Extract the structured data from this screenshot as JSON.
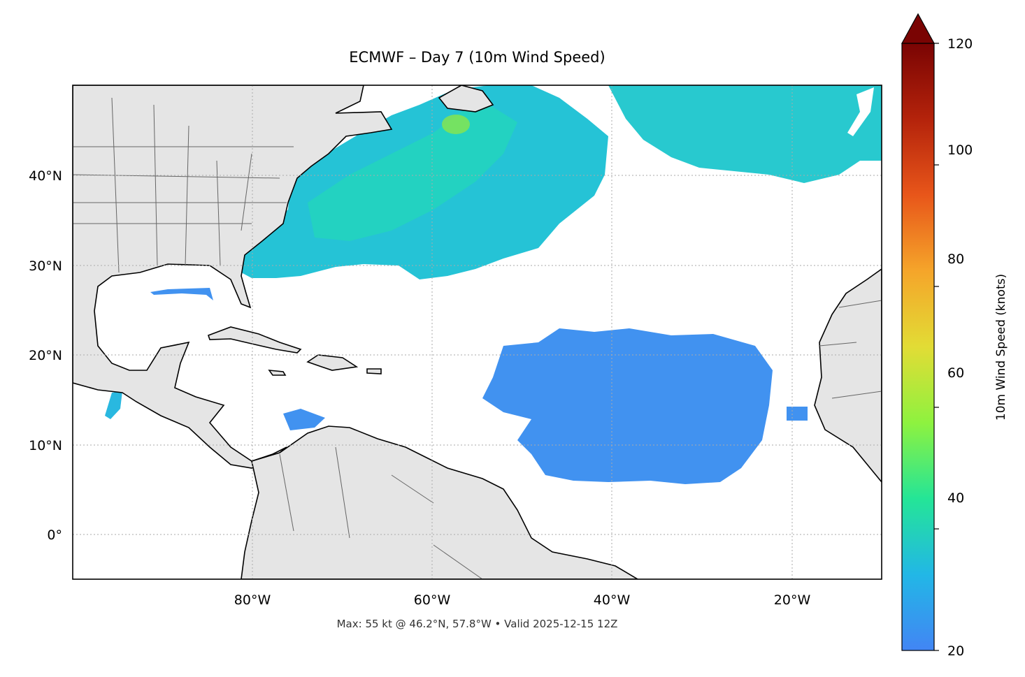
{
  "title": "ECMWF – Day 7 (10m Wind Speed)",
  "footer": "Max: 55 kt @ 46.2°N, 57.8°W • Valid 2025-12-15 12Z",
  "colorbar": {
    "label": "10m Wind Speed (knots)",
    "ticks": [
      "20",
      "40",
      "60",
      "80",
      "100",
      "120"
    ],
    "min": 20,
    "max": 120,
    "extend": "max",
    "colors": [
      "#4285f4",
      "#22b7e6",
      "#24e597",
      "#8ef23f",
      "#e2dc35",
      "#f5a52a",
      "#e8561a",
      "#b4230b",
      "#7a0403"
    ]
  },
  "map": {
    "lon_range": [
      -100,
      -10
    ],
    "lat_range": [
      -5,
      50
    ],
    "lon_ticks": [
      "80°W",
      "60°W",
      "40°W",
      "20°W"
    ],
    "lat_ticks": [
      "40°N",
      "30°N",
      "20°N",
      "10°N",
      "0°"
    ],
    "land_color": "#e5e5e5",
    "gridlines": "dotted"
  },
  "chart_data": {
    "type": "heatmap",
    "variable": "10m Wind Speed",
    "units": "knots",
    "max_value": 55,
    "max_location": {
      "lat": 46.2,
      "lon": -57.8
    },
    "regions": [
      {
        "lat": [
          29,
          50
        ],
        "lon": [
          -77,
          -40
        ],
        "range_kt": [
          20,
          50
        ]
      },
      {
        "lat": [
          38,
          50
        ],
        "lon": [
          -40,
          -10
        ],
        "range_kt": [
          20,
          38
        ]
      },
      {
        "lat": [
          5,
          25
        ],
        "lon": [
          -56,
          -18
        ],
        "range_kt": [
          20,
          30
        ]
      }
    ]
  }
}
